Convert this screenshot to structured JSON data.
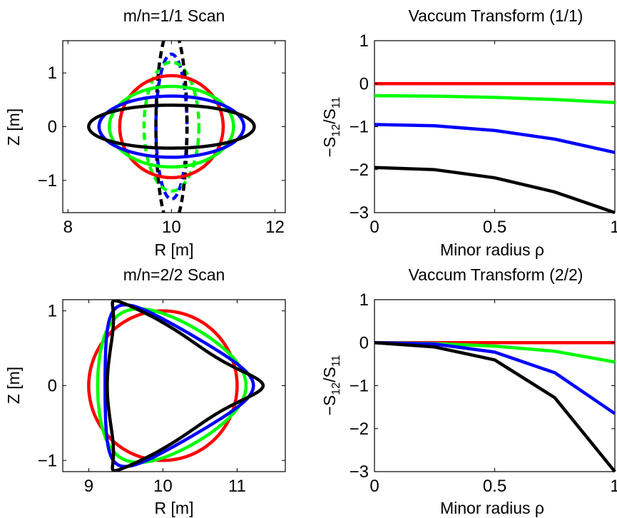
{
  "chart_data": [
    {
      "type": "line",
      "title": "m/n=1/1 Scan",
      "xlabel": "R [m]",
      "ylabel": "Z [m]",
      "xlim": [
        7.9,
        12.2
      ],
      "ylim": [
        -1.6,
        1.6
      ],
      "xticks": [
        8,
        10,
        12
      ],
      "yticks": [
        -1,
        0,
        1
      ],
      "grid": false,
      "series": [
        {
          "color": "#ff0000",
          "style": "solid",
          "points": [
            [
              10.0,
              0.0
            ],
            [
              11.0,
              0.0
            ]
          ]
        },
        {
          "color": "#00ff00",
          "style": "solid",
          "points": [
            [
              10.0,
              0.0
            ],
            [
              11.2,
              0.0
            ]
          ]
        },
        {
          "color": "#0000ff",
          "style": "solid",
          "points": [
            [
              10.0,
              0.0
            ],
            [
              11.4,
              0.0
            ]
          ]
        },
        {
          "color": "#000000",
          "style": "solid",
          "points": [
            [
              10.0,
              0.0
            ],
            [
              11.6,
              0.0
            ]
          ]
        }
      ]
    },
    {
      "type": "line",
      "title": "Vaccum Transform (1/1)",
      "xlabel": "Minor radius ρ",
      "ylabel": "−S12/S11",
      "ylabel_main": "−S",
      "ylabel_sub1": "12",
      "ylabel_mid": "/S",
      "ylabel_sub2": "11",
      "xlim": [
        0,
        1
      ],
      "ylim": [
        -3,
        1
      ],
      "xticks": [
        0,
        0.5,
        1
      ],
      "xtick_labels": [
        "0",
        "0.5",
        "1"
      ],
      "yticks": [
        -3,
        -2,
        -1,
        0,
        1
      ],
      "ytick_labels": [
        "−3",
        "−2",
        "−1",
        "0",
        "1"
      ],
      "grid": false,
      "series": [
        {
          "color": "#ff0000",
          "x": [
            0,
            0.25,
            0.5,
            0.75,
            1.0
          ],
          "y": [
            0,
            0,
            0,
            0,
            0
          ]
        },
        {
          "color": "#00ff00",
          "x": [
            0,
            0.25,
            0.5,
            0.75,
            1.0
          ],
          "y": [
            -0.28,
            -0.29,
            -0.32,
            -0.37,
            -0.44
          ]
        },
        {
          "color": "#0000ff",
          "x": [
            0,
            0.25,
            0.5,
            0.75,
            1.0
          ],
          "y": [
            -0.95,
            -0.98,
            -1.09,
            -1.29,
            -1.6
          ]
        },
        {
          "color": "#000000",
          "x": [
            0,
            0.25,
            0.5,
            0.75,
            1.0
          ],
          "y": [
            -1.95,
            -2.0,
            -2.19,
            -2.52,
            -3.0
          ]
        }
      ]
    },
    {
      "type": "line",
      "title": "m/n=2/2 Scan",
      "xlabel": "R [m]",
      "ylabel": "Z [m]",
      "xlim": [
        8.65,
        11.65
      ],
      "ylim": [
        -1.15,
        1.15
      ],
      "xticks": [
        9,
        10,
        11
      ],
      "yticks": [
        -1,
        0,
        1
      ],
      "grid": false,
      "series": [
        {
          "color": "#ff0000",
          "style": "solid",
          "points": [
            [
              10.0,
              0.0
            ],
            [
              11.0,
              0.0
            ]
          ]
        },
        {
          "color": "#00ff00",
          "style": "solid",
          "points": [
            [
              10.0,
              0.0
            ],
            [
              11.13,
              0.0
            ]
          ]
        },
        {
          "color": "#0000ff",
          "style": "solid",
          "points": [
            [
              10.0,
              0.0
            ],
            [
              11.22,
              0.0
            ]
          ]
        },
        {
          "color": "#000000",
          "style": "solid",
          "points": [
            [
              10.0,
              0.0
            ],
            [
              11.3,
              0.0
            ]
          ]
        }
      ]
    },
    {
      "type": "line",
      "title": "Vaccum Transform (2/2)",
      "xlabel": "Minor radius ρ",
      "ylabel": "−S12/S11",
      "ylabel_main": "−S",
      "ylabel_sub1": "12",
      "ylabel_mid": "/S",
      "ylabel_sub2": "11",
      "xlim": [
        0,
        1
      ],
      "ylim": [
        -3,
        1
      ],
      "xticks": [
        0,
        0.5,
        1
      ],
      "xtick_labels": [
        "0",
        "0.5",
        "1"
      ],
      "yticks": [
        -3,
        -2,
        -1,
        0,
        1
      ],
      "ytick_labels": [
        "−3",
        "−2",
        "−1",
        "0",
        "1"
      ],
      "grid": false,
      "series": [
        {
          "color": "#ff0000",
          "x": [
            0,
            0.25,
            0.5,
            0.75,
            1.0
          ],
          "y": [
            0,
            0,
            0,
            0,
            0
          ]
        },
        {
          "color": "#00ff00",
          "x": [
            0,
            0.25,
            0.5,
            0.75,
            1.0
          ],
          "y": [
            0,
            -0.02,
            -0.08,
            -0.2,
            -0.45
          ]
        },
        {
          "color": "#0000ff",
          "x": [
            0,
            0.25,
            0.5,
            0.75,
            1.0
          ],
          "y": [
            0,
            -0.03,
            -0.22,
            -0.7,
            -1.65
          ]
        },
        {
          "color": "#000000",
          "x": [
            0,
            0.25,
            0.5,
            0.75,
            1.0
          ],
          "y": [
            0,
            -0.1,
            -0.4,
            -1.28,
            -3.0
          ]
        }
      ]
    }
  ]
}
